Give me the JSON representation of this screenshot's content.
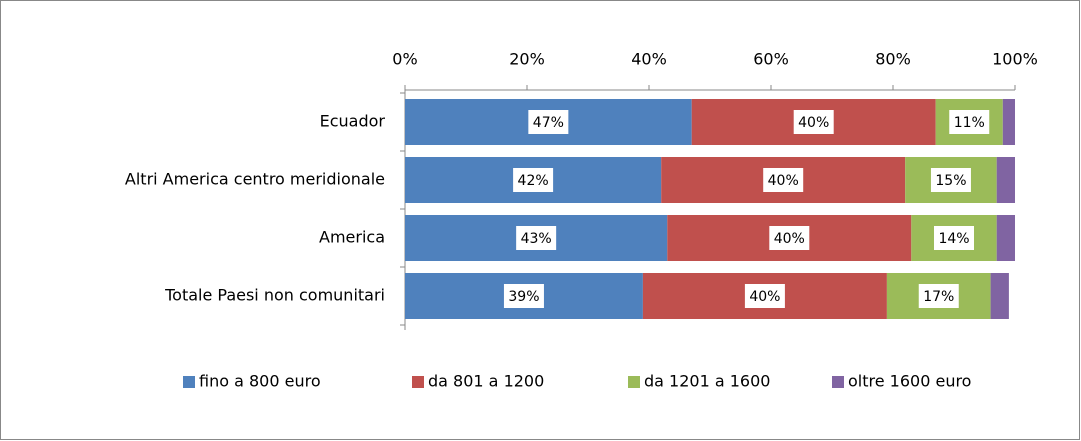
{
  "chart_data": {
    "type": "stacked-bar-horizontal",
    "categories": [
      "Ecuador",
      "Altri America centro meridionale",
      "America",
      "Totale Paesi non comunitari"
    ],
    "series": [
      {
        "name": "fino a 800 euro",
        "color": "#4f81bd",
        "values": [
          47,
          42,
          43,
          39
        ],
        "value_labels": [
          "47%",
          "42%",
          "43%",
          "39%"
        ]
      },
      {
        "name": "da 801 a 1200",
        "color": "#c0504d",
        "values": [
          40,
          40,
          40,
          40
        ],
        "value_labels": [
          "40%",
          "40%",
          "40%",
          "40%"
        ]
      },
      {
        "name": "da 1201 a 1600",
        "color": "#9bbb59",
        "values": [
          11,
          15,
          14,
          17
        ],
        "value_labels": [
          "11%",
          "15%",
          "14%",
          "17%"
        ]
      },
      {
        "name": "oltre 1600 euro",
        "color": "#8064a2",
        "values": [
          2,
          3,
          3,
          3
        ]
      }
    ],
    "xlim": [
      0,
      100
    ],
    "xticks": [
      {
        "value": 0,
        "label": "0%"
      },
      {
        "value": 20,
        "label": "20%"
      },
      {
        "value": 40,
        "label": "40%"
      },
      {
        "value": 60,
        "label": "60%"
      },
      {
        "value": 80,
        "label": "80%"
      },
      {
        "value": 100,
        "label": "100%"
      }
    ],
    "legend": "bottom"
  }
}
